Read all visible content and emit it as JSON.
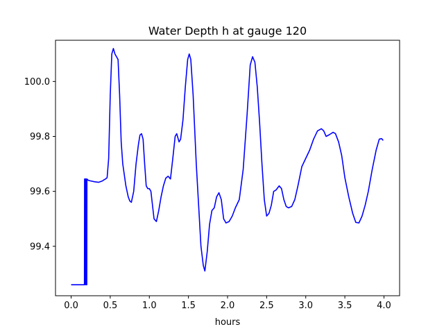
{
  "chart_data": {
    "type": "line",
    "title": "Water Depth h at gauge 120",
    "xlabel": "hours",
    "ylabel": "",
    "xlim": [
      -0.2,
      4.2
    ],
    "ylim": [
      99.22,
      100.15
    ],
    "x_ticks": [
      0.0,
      0.5,
      1.0,
      1.5,
      2.0,
      2.5,
      3.0,
      3.5,
      4.0
    ],
    "x_tick_labels": [
      "0.0",
      "0.5",
      "1.0",
      "1.5",
      "2.0",
      "2.5",
      "3.0",
      "3.5",
      "4.0"
    ],
    "y_ticks": [
      99.4,
      99.6,
      99.8,
      100.0
    ],
    "y_tick_labels": [
      "99.4",
      "99.6",
      "99.8",
      "100.0"
    ],
    "grid": false,
    "legend": "none",
    "series": [
      {
        "color": "#0000ff",
        "points": [
          [
            0.0,
            99.26
          ],
          [
            0.17,
            99.26
          ],
          [
            0.172,
            99.645
          ],
          [
            0.178,
            99.645
          ],
          [
            0.181,
            99.26
          ],
          [
            0.183,
            99.26
          ],
          [
            0.186,
            99.645
          ],
          [
            0.192,
            99.645
          ],
          [
            0.196,
            99.26
          ],
          [
            0.2,
            99.26
          ],
          [
            0.202,
            99.645
          ],
          [
            0.22,
            99.64
          ],
          [
            0.25,
            99.638
          ],
          [
            0.3,
            99.635
          ],
          [
            0.35,
            99.633
          ],
          [
            0.4,
            99.638
          ],
          [
            0.42,
            99.642
          ],
          [
            0.44,
            99.645
          ],
          [
            0.46,
            99.65
          ],
          [
            0.48,
            99.72
          ],
          [
            0.5,
            99.95
          ],
          [
            0.52,
            100.1
          ],
          [
            0.54,
            100.12
          ],
          [
            0.56,
            100.1
          ],
          [
            0.6,
            100.08
          ],
          [
            0.62,
            99.95
          ],
          [
            0.64,
            99.78
          ],
          [
            0.66,
            99.7
          ],
          [
            0.7,
            99.62
          ],
          [
            0.73,
            99.58
          ],
          [
            0.75,
            99.565
          ],
          [
            0.77,
            99.56
          ],
          [
            0.8,
            99.6
          ],
          [
            0.83,
            99.7
          ],
          [
            0.86,
            99.77
          ],
          [
            0.88,
            99.805
          ],
          [
            0.9,
            99.81
          ],
          [
            0.92,
            99.79
          ],
          [
            0.94,
            99.7
          ],
          [
            0.96,
            99.62
          ],
          [
            0.98,
            99.61
          ],
          [
            1.0,
            99.61
          ],
          [
            1.02,
            99.6
          ],
          [
            1.04,
            99.55
          ],
          [
            1.06,
            99.5
          ],
          [
            1.09,
            99.49
          ],
          [
            1.12,
            99.53
          ],
          [
            1.15,
            99.58
          ],
          [
            1.18,
            99.62
          ],
          [
            1.21,
            99.648
          ],
          [
            1.24,
            99.655
          ],
          [
            1.27,
            99.645
          ],
          [
            1.3,
            99.72
          ],
          [
            1.33,
            99.8
          ],
          [
            1.35,
            99.81
          ],
          [
            1.38,
            99.78
          ],
          [
            1.4,
            99.79
          ],
          [
            1.43,
            99.86
          ],
          [
            1.46,
            99.98
          ],
          [
            1.49,
            100.08
          ],
          [
            1.51,
            100.1
          ],
          [
            1.53,
            100.08
          ],
          [
            1.56,
            99.95
          ],
          [
            1.6,
            99.7
          ],
          [
            1.63,
            99.55
          ],
          [
            1.66,
            99.4
          ],
          [
            1.69,
            99.33
          ],
          [
            1.71,
            99.31
          ],
          [
            1.74,
            99.38
          ],
          [
            1.77,
            99.48
          ],
          [
            1.8,
            99.53
          ],
          [
            1.83,
            99.54
          ],
          [
            1.86,
            99.58
          ],
          [
            1.89,
            99.595
          ],
          [
            1.92,
            99.57
          ],
          [
            1.95,
            99.5
          ],
          [
            1.98,
            99.485
          ],
          [
            2.02,
            99.49
          ],
          [
            2.06,
            99.51
          ],
          [
            2.1,
            99.54
          ],
          [
            2.15,
            99.57
          ],
          [
            2.2,
            99.68
          ],
          [
            2.25,
            99.88
          ],
          [
            2.29,
            100.06
          ],
          [
            2.32,
            100.09
          ],
          [
            2.35,
            100.07
          ],
          [
            2.38,
            99.98
          ],
          [
            2.41,
            99.85
          ],
          [
            2.44,
            99.7
          ],
          [
            2.47,
            99.57
          ],
          [
            2.5,
            99.51
          ],
          [
            2.53,
            99.52
          ],
          [
            2.56,
            99.55
          ],
          [
            2.59,
            99.6
          ],
          [
            2.62,
            99.605
          ],
          [
            2.66,
            99.62
          ],
          [
            2.69,
            99.61
          ],
          [
            2.72,
            99.57
          ],
          [
            2.75,
            99.545
          ],
          [
            2.78,
            99.54
          ],
          [
            2.82,
            99.545
          ],
          [
            2.86,
            99.57
          ],
          [
            2.9,
            99.62
          ],
          [
            2.95,
            99.69
          ],
          [
            3.0,
            99.72
          ],
          [
            3.05,
            99.75
          ],
          [
            3.1,
            99.79
          ],
          [
            3.15,
            99.82
          ],
          [
            3.2,
            99.828
          ],
          [
            3.23,
            99.82
          ],
          [
            3.26,
            99.8
          ],
          [
            3.3,
            99.806
          ],
          [
            3.35,
            99.815
          ],
          [
            3.38,
            99.81
          ],
          [
            3.42,
            99.78
          ],
          [
            3.46,
            99.73
          ],
          [
            3.5,
            99.65
          ],
          [
            3.55,
            99.58
          ],
          [
            3.6,
            99.52
          ],
          [
            3.64,
            99.487
          ],
          [
            3.68,
            99.485
          ],
          [
            3.72,
            99.51
          ],
          [
            3.76,
            99.55
          ],
          [
            3.8,
            99.6
          ],
          [
            3.85,
            99.68
          ],
          [
            3.9,
            99.75
          ],
          [
            3.94,
            99.79
          ],
          [
            3.97,
            99.792
          ],
          [
            3.99,
            99.785
          ]
        ]
      }
    ]
  }
}
